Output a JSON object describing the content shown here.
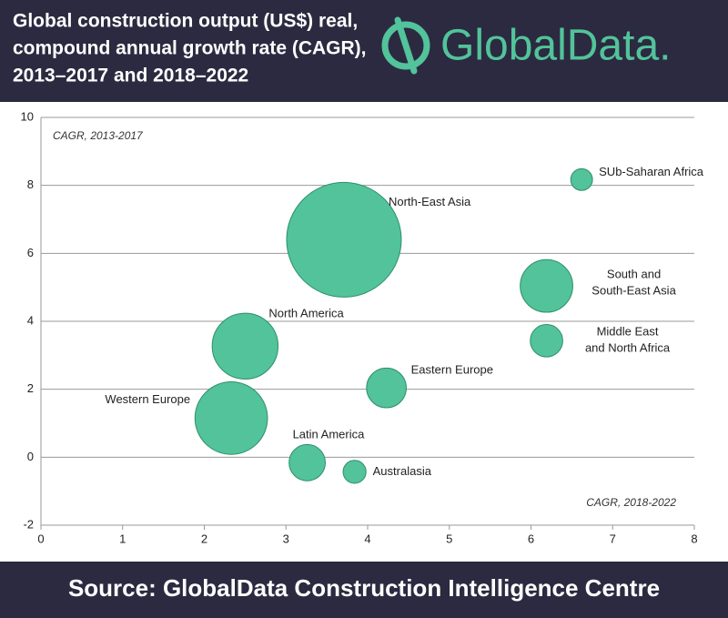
{
  "header": {
    "title": [
      "Global construction output (US$) real,",
      "compound annual growth rate (CAGR),",
      "2013–2017 and 2018–2022"
    ],
    "brand": "GlobalData."
  },
  "chart_data": {
    "type": "bubble",
    "y_label": "CAGR, 2013-2017",
    "x_label": "CAGR, 2018-2022",
    "color": "#52c39a",
    "labels": [
      [
        "SUb-Saharan Africa"
      ],
      [
        "North-East Asia"
      ],
      [
        "South and",
        "South-East Asia"
      ],
      [
        "Middle East",
        "and North Africa"
      ],
      [
        "North America"
      ],
      [
        "Eastern Europe"
      ],
      [
        "Western Europe"
      ],
      [
        "Latin America"
      ],
      [
        "Australasia"
      ]
    ],
    "x": [
      6.62,
      3.71,
      6.19,
      6.19,
      2.5,
      4.23,
      2.33,
      3.26,
      3.84
    ],
    "values": [
      8.17,
      6.4,
      5.04,
      3.43,
      3.27,
      2.04,
      1.15,
      -0.16,
      -0.43
    ],
    "sizes": [
      3.6,
      100,
      21,
      8,
      33,
      12,
      40,
      10,
      4
    ],
    "xlim": [
      0,
      8
    ],
    "ylim": [
      -2,
      10
    ],
    "xticks": [
      0,
      1,
      2,
      3,
      4,
      5,
      6,
      7,
      8
    ],
    "yticks": [
      -2,
      0,
      2,
      4,
      6,
      8,
      10
    ],
    "grid": true
  },
  "footer": {
    "source": "Source: GlobalData Construction Intelligence Centre"
  }
}
